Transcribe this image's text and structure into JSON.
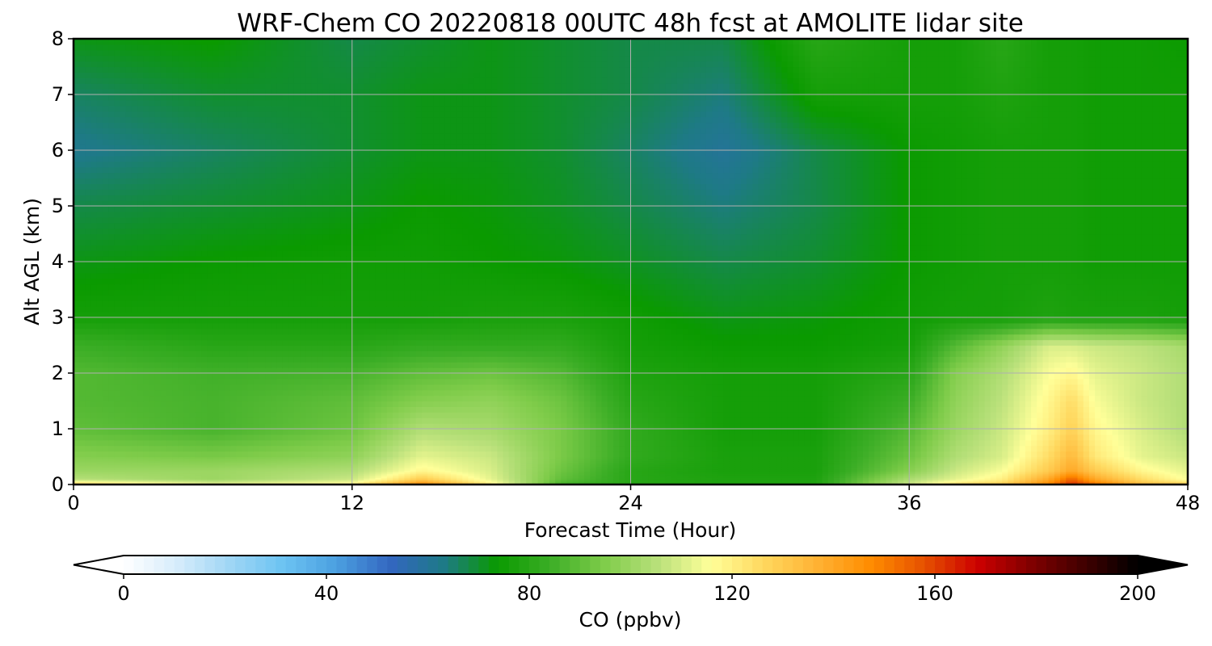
{
  "chart_data": {
    "type": "heatmap",
    "title": "WRF-Chem CO  20220818 00UTC 48h fcst at AMOLITE lidar site",
    "xlabel": "Forecast Time (Hour)",
    "ylabel": "Alt AGL (km)",
    "xlim": [
      0,
      48
    ],
    "ylim": [
      0,
      8
    ],
    "x_ticks": [
      "0",
      "12",
      "24",
      "36",
      "48"
    ],
    "y_ticks": [
      "0",
      "1",
      "2",
      "3",
      "4",
      "5",
      "6",
      "7",
      "8"
    ],
    "grid": true,
    "colorbar": {
      "label": "CO  (ppbv)",
      "range": [
        0,
        200
      ],
      "ticks": [
        "0",
        "40",
        "80",
        "120",
        "160",
        "200"
      ],
      "extend": "both",
      "colors": [
        "#ffffff",
        "#d6ecfb",
        "#9fd6f5",
        "#6bc3f2",
        "#4b9fe0",
        "#3366c0",
        "#1e7a86",
        "#0a9a00",
        "#3cae26",
        "#7fcc4a",
        "#b8e07a",
        "#ffff99",
        "#ffd75e",
        "#ffb233",
        "#ff8c00",
        "#e65100",
        "#cc0000",
        "#800000",
        "#400000",
        "#000000"
      ]
    },
    "x": [
      0,
      6,
      12,
      15,
      18,
      21,
      24,
      28,
      32,
      36,
      38,
      40,
      42,
      43,
      44,
      46,
      48
    ],
    "y": [
      0,
      0.1,
      0.25,
      0.5,
      1,
      1.5,
      2,
      2.5,
      3,
      4,
      5,
      6,
      7,
      8
    ],
    "values": [
      [
        130,
        115,
        120,
        150,
        120,
        85,
        80,
        78,
        78,
        110,
        125,
        130,
        150,
        165,
        155,
        135,
        130
      ],
      [
        105,
        100,
        108,
        130,
        112,
        90,
        80,
        78,
        78,
        103,
        112,
        120,
        140,
        155,
        140,
        125,
        115
      ],
      [
        100,
        100,
        104,
        118,
        110,
        92,
        80,
        77,
        77,
        96,
        108,
        115,
        130,
        140,
        130,
        118,
        112
      ],
      [
        96,
        94,
        98,
        112,
        108,
        94,
        82,
        77,
        77,
        92,
        104,
        110,
        125,
        135,
        122,
        112,
        108
      ],
      [
        90,
        86,
        92,
        104,
        102,
        94,
        82,
        76,
        76,
        88,
        100,
        108,
        120,
        128,
        118,
        110,
        104
      ],
      [
        88,
        86,
        90,
        96,
        98,
        92,
        80,
        76,
        76,
        84,
        98,
        106,
        118,
        125,
        115,
        108,
        104
      ],
      [
        88,
        85,
        86,
        90,
        92,
        88,
        78,
        76,
        76,
        80,
        96,
        104,
        115,
        118,
        112,
        108,
        104
      ],
      [
        84,
        80,
        80,
        82,
        82,
        82,
        76,
        74,
        74,
        76,
        88,
        98,
        110,
        110,
        108,
        106,
        102
      ],
      [
        76,
        76,
        76,
        76,
        77,
        77,
        75,
        72,
        73,
        75,
        76,
        76,
        78,
        77,
        77,
        77,
        76
      ],
      [
        72,
        74,
        75,
        75,
        74,
        73,
        71,
        68,
        70,
        74,
        75,
        76,
        76,
        76,
        75,
        75,
        75
      ],
      [
        68,
        70,
        72,
        74,
        73,
        71,
        68,
        64,
        68,
        74,
        75,
        76,
        76,
        76,
        75,
        75,
        75
      ],
      [
        62,
        66,
        70,
        72,
        72,
        70,
        66,
        60,
        68,
        74,
        75,
        76,
        76,
        76,
        75,
        75,
        75
      ],
      [
        66,
        70,
        70,
        72,
        72,
        70,
        68,
        64,
        76,
        76,
        76,
        78,
        76,
        76,
        75,
        75,
        75
      ],
      [
        72,
        74,
        68,
        70,
        72,
        70,
        68,
        68,
        80,
        76,
        76,
        80,
        76,
        76,
        75,
        75,
        74
      ]
    ]
  }
}
